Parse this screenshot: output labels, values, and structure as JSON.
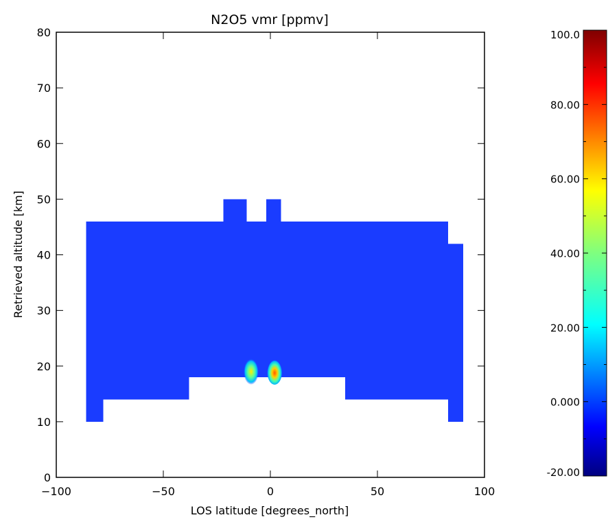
{
  "chart_data": [
    {
      "type": "heatmap",
      "title": "N2O5 vmr [ppmv]",
      "xlabel": "LOS latitude [degrees_north]",
      "ylabel": "Retrieved altitude [km]",
      "xlim": [
        -100,
        100
      ],
      "ylim": [
        0,
        80
      ],
      "xticks": [
        -100,
        -50,
        0,
        50,
        100
      ],
      "yticks": [
        0,
        10,
        20,
        30,
        40,
        50,
        60,
        70,
        80
      ],
      "background_value": 0.0,
      "data_coverage_regions": [
        {
          "x": [
            -86,
            -78
          ],
          "y": [
            10,
            46
          ]
        },
        {
          "x": [
            -78,
            -38
          ],
          "y": [
            14,
            46
          ]
        },
        {
          "x": [
            -38,
            35
          ],
          "y": [
            18,
            46
          ]
        },
        {
          "x": [
            35,
            83
          ],
          "y": [
            14,
            46
          ]
        },
        {
          "x": [
            83,
            90
          ],
          "y": [
            10,
            42
          ]
        },
        {
          "x": [
            83,
            90
          ],
          "y": [
            42,
            46
          ],
          "missing": true
        },
        {
          "x": [
            -22,
            -11
          ],
          "y": [
            46,
            50
          ]
        },
        {
          "x": [
            -2,
            5
          ],
          "y": [
            46,
            50
          ]
        }
      ],
      "peaks": [
        {
          "x": -9,
          "y": 19,
          "value": 40
        },
        {
          "x": 2,
          "y": 19,
          "value": 70
        }
      ]
    },
    {
      "type": "colorbar",
      "colormap": "jet",
      "range": [
        -20,
        100
      ],
      "tick_labels": [
        "100.0",
        "80.00",
        "60.00",
        "40.00",
        "20.00",
        "0.000",
        "-20.00"
      ],
      "tick_values": [
        100,
        80,
        60,
        40,
        20,
        0,
        -20
      ]
    }
  ]
}
